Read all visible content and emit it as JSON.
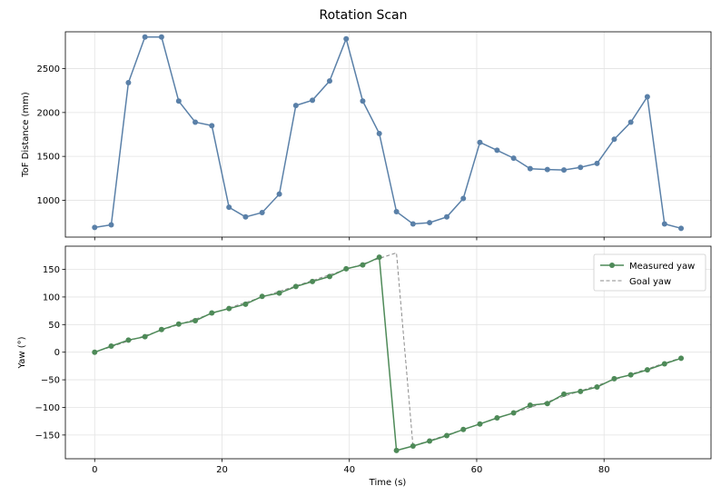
{
  "figure": {
    "title": "Rotation Scan"
  },
  "colors": {
    "tof": "#5a80a8",
    "measured": "#4e8a58",
    "goal": "#8c8c8c"
  },
  "chart_data": [
    {
      "type": "line",
      "ylabel": "ToF Distance (mm)",
      "xlim": [
        -4.6,
        96.8
      ],
      "ylim": [
        580,
        2920
      ],
      "yticks": [
        1000,
        1500,
        2000,
        2500
      ],
      "xticks": [
        0,
        20,
        40,
        60,
        80
      ],
      "grid": true,
      "series": [
        {
          "x": [
            0,
            2.6,
            5.3,
            7.9,
            10.5,
            13.2,
            15.8,
            18.4,
            21.1,
            23.7,
            26.3,
            29.0,
            31.6,
            34.2,
            36.9,
            39.5,
            42.1,
            44.7,
            47.4,
            50.0,
            52.6,
            55.3,
            57.9,
            60.5,
            63.2,
            65.8,
            68.4,
            71.1,
            73.7,
            76.3,
            78.9,
            81.6,
            84.2,
            86.8,
            89.5,
            92.1
          ],
          "values": [
            690,
            720,
            2340,
            2860,
            2860,
            2130,
            1890,
            1850,
            920,
            810,
            860,
            1070,
            2080,
            2140,
            2360,
            2840,
            2130,
            1760,
            870,
            730,
            745,
            810,
            1020,
            1660,
            1570,
            1480,
            1360,
            1350,
            1345,
            1375,
            1420,
            1695,
            1890,
            2180,
            730,
            680
          ]
        }
      ]
    },
    {
      "type": "line",
      "xlabel": "Time (s)",
      "ylabel": "Yaw (°)",
      "xlim": [
        -4.6,
        96.8
      ],
      "ylim": [
        -193,
        192
      ],
      "yticks": [
        -150,
        -100,
        -50,
        0,
        50,
        100,
        150
      ],
      "yticklabels": [
        "−150",
        "−100",
        "−50",
        "0",
        "50",
        "100",
        "150"
      ],
      "xticks": [
        0,
        20,
        40,
        60,
        80
      ],
      "grid": true,
      "legend": "top-right",
      "series": [
        {
          "name": "Measured yaw",
          "x": [
            0,
            2.6,
            5.3,
            7.9,
            10.5,
            13.2,
            15.8,
            18.4,
            21.1,
            23.7,
            26.3,
            29.0,
            31.6,
            34.2,
            36.9,
            39.5,
            42.1,
            44.7,
            47.4,
            50.0,
            52.6,
            55.3,
            57.9,
            60.5,
            63.2,
            65.8,
            68.4,
            71.1,
            73.7,
            76.3,
            78.9,
            81.6,
            84.2,
            86.8,
            89.5,
            92.1
          ],
          "values": [
            0,
            11,
            22,
            28,
            41,
            51,
            57,
            71,
            79,
            87,
            101,
            107,
            119,
            128,
            137,
            151,
            158,
            172,
            -178,
            -170,
            -161,
            -151,
            -140,
            -130,
            -119,
            -110,
            -96,
            -93,
            -76,
            -71,
            -63,
            -48,
            -41,
            -32,
            -21,
            -11
          ]
        },
        {
          "name": "Goal yaw",
          "x": [
            0,
            47.4,
            50.0,
            92.1
          ],
          "values": [
            0,
            180,
            -170,
            -10
          ]
        }
      ]
    }
  ]
}
